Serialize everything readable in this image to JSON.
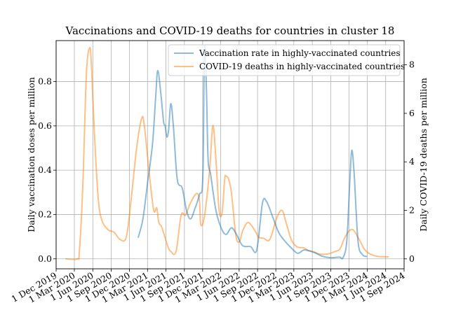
{
  "chart_data": {
    "type": "line",
    "title": "Vaccinations and COVID-19 deaths for countries in cluster 18",
    "ylabel_left": "Daily vaccination doses per million",
    "ylabel_right": "Daily COVID-19 deaths per million",
    "xlabel": "",
    "grid": true,
    "legend_position": "top-right",
    "x_ticks": [
      "1 Dec 2019",
      "1 Mar 2020",
      "1 Jun 2020",
      "1 Sep 2020",
      "1 Dec 2020",
      "1 Mar 2021",
      "1 Jun 2021",
      "1 Sep 2021",
      "1 Dec 2021",
      "1 Mar 2022",
      "1 Jun 2022",
      "1 Sep 2022",
      "1 Dec 2022",
      "1 Mar 2023",
      "1 Jun 2023",
      "1 Sep 2023",
      "1 Dec 2023",
      "1 Mar 2024",
      "1 Jun 2024",
      "1 Sep 2024"
    ],
    "xlim": [
      "2019-12-01",
      "2024-09-01"
    ],
    "y_left": {
      "ticks": [
        "0.0",
        "0.2",
        "0.4",
        "0.6",
        "0.8"
      ],
      "lim": [
        -0.045,
        0.985
      ]
    },
    "y_right": {
      "ticks": [
        "0",
        "2",
        "4",
        "6",
        "8"
      ],
      "lim": [
        -0.41,
        9.0
      ]
    },
    "series": [
      {
        "name": "Vaccination rate in highly-vaccinated countries",
        "axis": "left",
        "color": "#1f77b4",
        "points": [
          [
            "2021-01-13",
            0.095
          ],
          [
            "2021-02-06",
            0.18
          ],
          [
            "2021-03-02",
            0.35
          ],
          [
            "2021-03-26",
            0.52
          ],
          [
            "2021-04-12",
            0.75
          ],
          [
            "2021-04-21",
            0.85
          ],
          [
            "2021-05-06",
            0.75
          ],
          [
            "2021-05-20",
            0.62
          ],
          [
            "2021-05-28",
            0.6
          ],
          [
            "2021-06-05",
            0.55
          ],
          [
            "2021-06-14",
            0.58
          ],
          [
            "2021-06-25",
            0.7
          ],
          [
            "2021-07-08",
            0.6
          ],
          [
            "2021-07-27",
            0.36
          ],
          [
            "2021-08-21",
            0.32
          ],
          [
            "2021-09-11",
            0.22
          ],
          [
            "2021-10-01",
            0.18
          ],
          [
            "2021-10-21",
            0.22
          ],
          [
            "2021-11-15",
            0.29
          ],
          [
            "2021-12-02",
            0.37
          ],
          [
            "2021-12-10",
            0.95
          ],
          [
            "2021-12-20",
            0.76
          ],
          [
            "2021-12-28",
            0.45
          ],
          [
            "2022-01-10",
            0.38
          ],
          [
            "2022-02-05",
            0.22
          ],
          [
            "2022-03-03",
            0.14
          ],
          [
            "2022-03-28",
            0.11
          ],
          [
            "2022-04-24",
            0.14
          ],
          [
            "2022-05-19",
            0.11
          ],
          [
            "2022-06-18",
            0.06
          ],
          [
            "2022-07-28",
            0.055
          ],
          [
            "2022-08-28",
            0.04
          ],
          [
            "2022-09-25",
            0.25
          ],
          [
            "2022-10-15",
            0.26
          ],
          [
            "2022-11-15",
            0.19
          ],
          [
            "2022-12-15",
            0.12
          ],
          [
            "2023-01-15",
            0.08
          ],
          [
            "2023-02-15",
            0.05
          ],
          [
            "2023-03-20",
            0.025
          ],
          [
            "2023-04-20",
            0.04
          ],
          [
            "2023-05-20",
            0.035
          ],
          [
            "2023-06-20",
            0.025
          ],
          [
            "2023-07-20",
            0.012
          ],
          [
            "2023-09-01",
            0.005
          ],
          [
            "2023-10-15",
            0.008
          ],
          [
            "2023-11-01",
            0.005
          ],
          [
            "2023-11-20",
            0.08
          ],
          [
            "2023-12-05",
            0.35
          ],
          [
            "2023-12-15",
            0.49
          ],
          [
            "2023-12-27",
            0.38
          ],
          [
            "2024-01-15",
            0.08
          ],
          [
            "2024-02-05",
            0.02
          ],
          [
            "2024-03-01",
            0.01
          ]
        ]
      },
      {
        "name": "COVID-19 deaths in highly-vaccinated countries",
        "axis": "right",
        "color": "#ff7f0e",
        "points": [
          [
            "2020-01-17",
            0.0
          ],
          [
            "2020-03-15",
            0.0
          ],
          [
            "2020-03-26",
            0.3
          ],
          [
            "2020-04-12",
            3.0
          ],
          [
            "2020-04-30",
            7.6
          ],
          [
            "2020-05-16",
            8.7
          ],
          [
            "2020-05-25",
            8.0
          ],
          [
            "2020-06-10",
            5.0
          ],
          [
            "2020-06-28",
            2.5
          ],
          [
            "2020-07-16",
            1.6
          ],
          [
            "2020-08-16",
            1.2
          ],
          [
            "2020-09-15",
            1.1
          ],
          [
            "2020-10-15",
            0.8
          ],
          [
            "2020-11-15",
            0.9
          ],
          [
            "2020-12-10",
            2.5
          ],
          [
            "2021-01-06",
            4.6
          ],
          [
            "2021-01-31",
            5.8
          ],
          [
            "2021-02-13",
            5.5
          ],
          [
            "2021-03-10",
            3.5
          ],
          [
            "2021-04-01",
            2.0
          ],
          [
            "2021-04-16",
            2.1
          ],
          [
            "2021-04-26",
            1.5
          ],
          [
            "2021-05-11",
            1.3
          ],
          [
            "2021-06-11",
            0.5
          ],
          [
            "2021-06-26",
            0.3
          ],
          [
            "2021-07-21",
            0.3
          ],
          [
            "2021-08-16",
            1.8
          ],
          [
            "2021-09-06",
            1.8
          ],
          [
            "2021-10-01",
            2.3
          ],
          [
            "2021-11-01",
            2.7
          ],
          [
            "2021-11-15",
            2.4
          ],
          [
            "2021-11-22",
            1.4
          ],
          [
            "2021-12-11",
            1.8
          ],
          [
            "2022-01-05",
            3.7
          ],
          [
            "2022-01-21",
            5.5
          ],
          [
            "2022-02-06",
            4.0
          ],
          [
            "2022-02-21",
            2.0
          ],
          [
            "2022-03-08",
            1.9
          ],
          [
            "2022-03-21",
            3.3
          ],
          [
            "2022-03-28",
            3.4
          ],
          [
            "2022-04-09",
            3.3
          ],
          [
            "2022-04-24",
            2.7
          ],
          [
            "2022-05-15",
            1.0
          ],
          [
            "2022-06-01",
            0.7
          ],
          [
            "2022-06-21",
            1.2
          ],
          [
            "2022-07-16",
            1.5
          ],
          [
            "2022-08-16",
            1.2
          ],
          [
            "2022-09-06",
            0.9
          ],
          [
            "2022-10-01",
            0.85
          ],
          [
            "2022-11-01",
            0.8
          ],
          [
            "2022-12-06",
            1.7
          ],
          [
            "2023-01-01",
            2.0
          ],
          [
            "2023-01-21",
            1.5
          ],
          [
            "2023-02-16",
            0.8
          ],
          [
            "2023-03-16",
            0.5
          ],
          [
            "2023-04-21",
            0.45
          ],
          [
            "2023-05-11",
            0.35
          ],
          [
            "2023-06-06",
            0.3
          ],
          [
            "2023-07-06",
            0.2
          ],
          [
            "2023-08-16",
            0.2
          ],
          [
            "2023-09-21",
            0.3
          ],
          [
            "2023-10-16",
            0.4
          ],
          [
            "2023-11-06",
            0.8
          ],
          [
            "2023-11-26",
            1.1
          ],
          [
            "2023-12-21",
            1.2
          ],
          [
            "2024-01-21",
            0.8
          ],
          [
            "2024-02-16",
            0.4
          ],
          [
            "2024-03-16",
            0.2
          ],
          [
            "2024-04-21",
            0.1
          ],
          [
            "2024-06-16",
            0.08
          ]
        ]
      }
    ]
  }
}
